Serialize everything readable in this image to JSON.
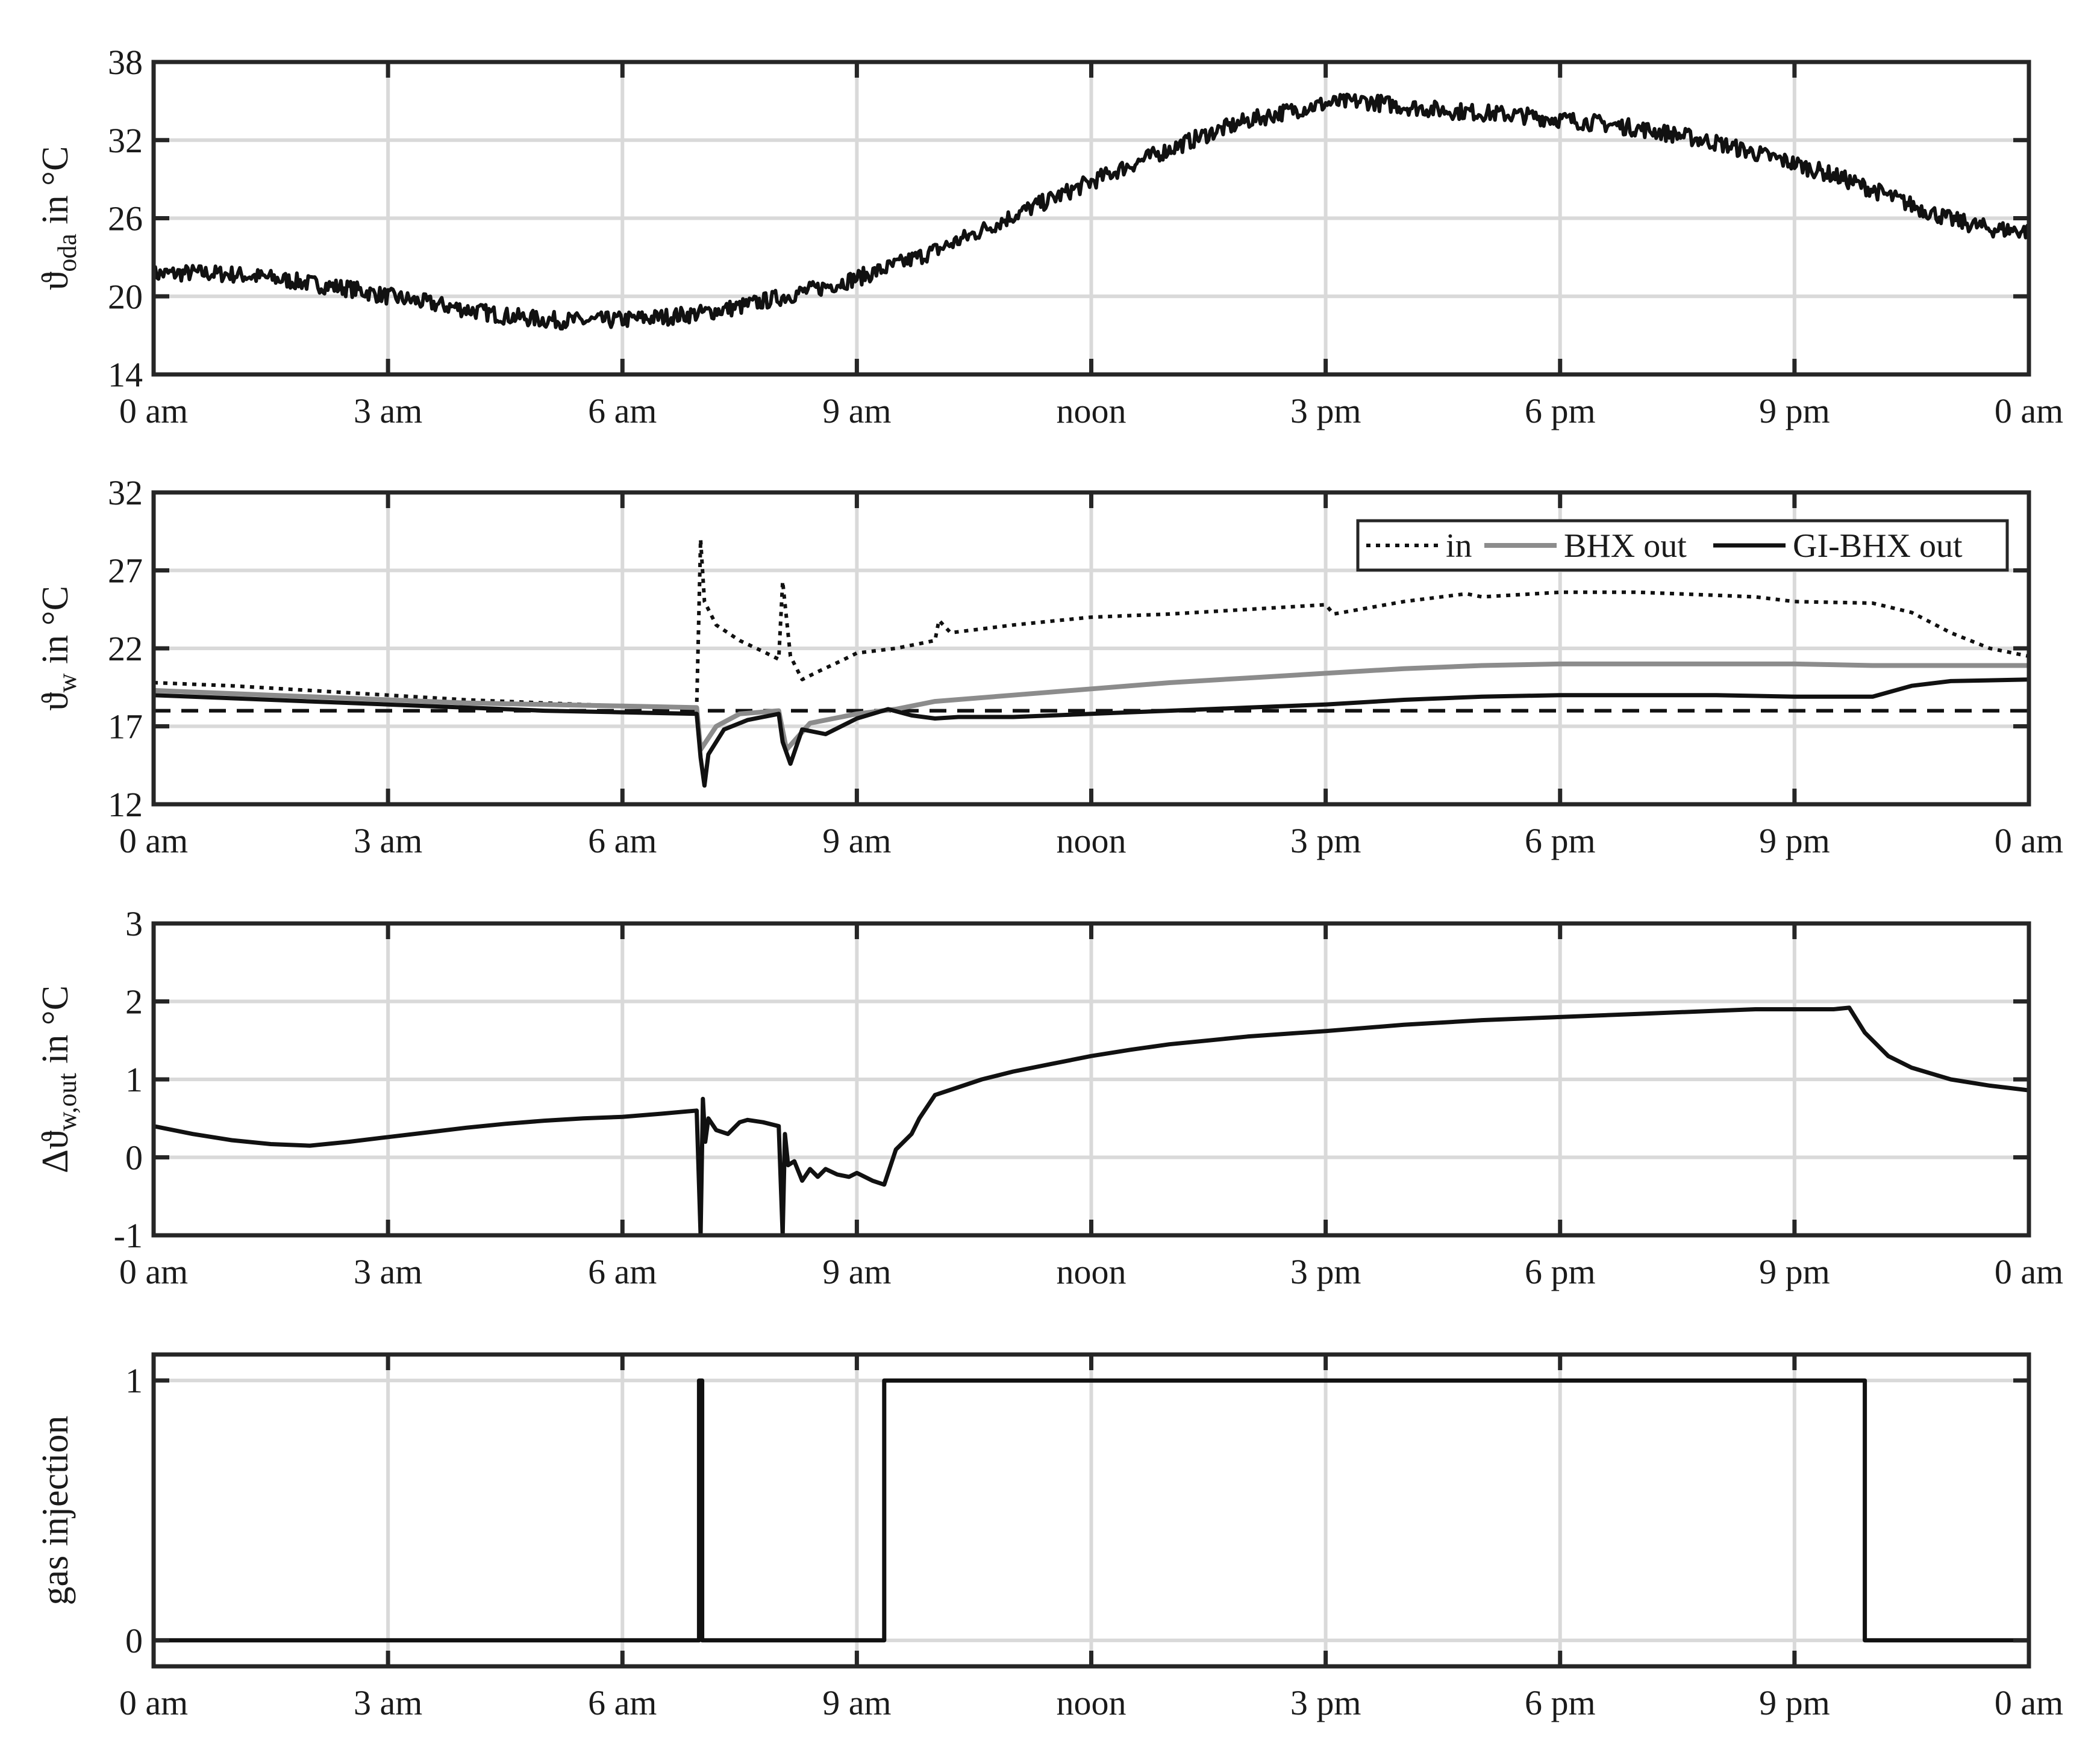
{
  "colors": {
    "frame": "#262626",
    "grid": "#d9d9d9",
    "black_line": "#111111",
    "gray_line": "#8c8c8c",
    "background": "#ffffff"
  },
  "x_tick_labels": [
    "0 am",
    "3 am",
    "6 am",
    "9 am",
    "noon",
    "3 pm",
    "6 pm",
    "9 pm",
    "0 am"
  ],
  "chart_data": [
    {
      "type": "line",
      "ylabel": "ϑoda in °C",
      "ylabel_main": "ϑ",
      "ylabel_sub": "oda",
      "ylabel_unit": " in °C",
      "xlim": [
        0,
        24
      ],
      "x_ticks": [
        0,
        3,
        6,
        9,
        12,
        15,
        18,
        21,
        24
      ],
      "ylim": [
        14,
        38
      ],
      "y_ticks": [
        14,
        20,
        26,
        32,
        38
      ],
      "y_tick_labels": [
        "14",
        "20",
        "26",
        "32",
        "38"
      ],
      "grid": true,
      "series": [
        {
          "style": "solid-black-noisy",
          "x": [
            0,
            0.5,
            1,
            1.5,
            2,
            2.5,
            3,
            3.5,
            4,
            4.5,
            5,
            5.5,
            6,
            6.5,
            7,
            7.5,
            8,
            8.5,
            9,
            9.5,
            10,
            10.5,
            11,
            11.5,
            12,
            12.5,
            13,
            13.5,
            14,
            14.5,
            15,
            15.5,
            16,
            16.5,
            17,
            17.5,
            18,
            18.5,
            19,
            19.5,
            20,
            20.5,
            21,
            21.5,
            22,
            22.5,
            23,
            23.5,
            24
          ],
          "y": [
            21.7,
            21.8,
            21.7,
            21.4,
            21.0,
            20.6,
            20.0,
            19.5,
            19.0,
            18.5,
            18.2,
            18.1,
            18.2,
            18.4,
            18.7,
            19.2,
            19.9,
            20.6,
            21.4,
            22.4,
            23.5,
            24.8,
            26.2,
            27.5,
            28.8,
            30.1,
            31.3,
            32.5,
            33.5,
            34.2,
            34.8,
            35.0,
            34.6,
            34.3,
            34.1,
            33.9,
            33.6,
            33.3,
            32.9,
            32.4,
            31.8,
            31.0,
            30.2,
            29.3,
            28.2,
            27.0,
            25.9,
            25.2,
            25.0
          ]
        }
      ]
    },
    {
      "type": "line",
      "ylabel": "ϑw in °C",
      "ylabel_main": "ϑ",
      "ylabel_sub": "w",
      "ylabel_unit": " in °C",
      "xlim": [
        0,
        24
      ],
      "x_ticks": [
        0,
        3,
        6,
        9,
        12,
        15,
        18,
        21,
        24
      ],
      "ylim": [
        12,
        32
      ],
      "y_ticks": [
        12,
        17,
        22,
        27,
        32
      ],
      "y_tick_labels": [
        "12",
        "17",
        "22",
        "27",
        "32"
      ],
      "grid": true,
      "legend_position": "top-right",
      "reference_line": {
        "y": 18,
        "style": "dashed-black"
      },
      "series": [
        {
          "name": "in",
          "style": "dotted-black",
          "x": [
            0,
            1,
            2,
            3,
            4,
            5,
            6,
            6.95,
            7.0,
            7.05,
            7.2,
            7.5,
            7.8,
            8.0,
            8.05,
            8.15,
            8.3,
            8.5,
            8.8,
            9.0,
            9.5,
            10.0,
            10.05,
            10.2,
            11,
            12,
            13,
            14,
            15,
            15.1,
            16,
            16.8,
            17,
            18,
            19,
            20,
            20.5,
            21,
            22,
            22.5,
            23,
            23.5,
            24
          ],
          "y": [
            19.8,
            19.6,
            19.3,
            19.0,
            18.7,
            18.5,
            18.3,
            18.2,
            29.0,
            25.0,
            23.5,
            22.5,
            21.8,
            21.3,
            26.3,
            21.5,
            20.0,
            20.5,
            21.2,
            21.7,
            22.0,
            22.5,
            23.8,
            23.0,
            23.5,
            24.0,
            24.2,
            24.5,
            24.8,
            24.2,
            25.0,
            25.5,
            25.3,
            25.6,
            25.6,
            25.4,
            25.3,
            25.0,
            24.9,
            24.3,
            23.0,
            22.0,
            21.5
          ]
        },
        {
          "name": "BHX out",
          "style": "solid-gray",
          "x": [
            0,
            1,
            2,
            3,
            4,
            5,
            6,
            6.95,
            7.0,
            7.2,
            7.5,
            8.0,
            8.1,
            8.4,
            9.0,
            9.5,
            10.0,
            11,
            12,
            13,
            14,
            15,
            16,
            17,
            18,
            19,
            20,
            21,
            22,
            23,
            24
          ],
          "y": [
            19.3,
            19.1,
            18.9,
            18.7,
            18.5,
            18.4,
            18.3,
            18.2,
            15.5,
            17.0,
            17.8,
            18.0,
            15.5,
            17.2,
            17.8,
            18.1,
            18.6,
            19.0,
            19.4,
            19.8,
            20.1,
            20.4,
            20.7,
            20.9,
            21.0,
            21.0,
            21.0,
            21.0,
            20.9,
            20.9,
            20.9
          ]
        },
        {
          "name": "GI-BHX out",
          "style": "solid-black",
          "x": [
            0,
            1,
            2,
            3,
            4,
            5,
            6,
            6.95,
            7.0,
            7.05,
            7.1,
            7.3,
            7.6,
            8.0,
            8.05,
            8.15,
            8.3,
            8.6,
            9.0,
            9.4,
            9.7,
            10.0,
            10.3,
            11,
            12,
            13,
            14,
            15,
            16,
            17,
            18,
            19,
            20,
            21,
            22,
            22.5,
            23,
            24
          ],
          "y": [
            19.0,
            18.8,
            18.6,
            18.4,
            18.2,
            18.0,
            17.9,
            17.8,
            15.0,
            13.2,
            15.2,
            16.8,
            17.4,
            17.8,
            16.0,
            14.6,
            16.8,
            16.5,
            17.5,
            18.1,
            17.7,
            17.5,
            17.6,
            17.6,
            17.8,
            18.0,
            18.2,
            18.4,
            18.7,
            18.9,
            19.0,
            19.0,
            19.0,
            18.9,
            18.9,
            19.6,
            19.9,
            20.0
          ]
        }
      ]
    },
    {
      "type": "line",
      "ylabel": "Δϑw,out in °C",
      "ylabel_main": "Δϑ",
      "ylabel_sub": "w,out",
      "ylabel_unit": " in °C",
      "xlim": [
        0,
        24
      ],
      "x_ticks": [
        0,
        3,
        6,
        9,
        12,
        15,
        18,
        21,
        24
      ],
      "ylim": [
        -1,
        3
      ],
      "y_ticks": [
        -1,
        0,
        1,
        2,
        3
      ],
      "y_tick_labels": [
        "-1",
        "0",
        "1",
        "2",
        "3"
      ],
      "grid": true,
      "series": [
        {
          "style": "solid-black",
          "x": [
            0,
            0.5,
            1,
            1.5,
            2,
            2.5,
            3,
            3.5,
            4,
            4.5,
            5,
            5.5,
            6,
            6.5,
            6.95,
            7.0,
            7.03,
            7.06,
            7.1,
            7.2,
            7.35,
            7.5,
            7.6,
            7.8,
            8.0,
            8.05,
            8.08,
            8.12,
            8.2,
            8.3,
            8.4,
            8.5,
            8.6,
            8.75,
            8.9,
            9.0,
            9.2,
            9.35,
            9.5,
            9.7,
            9.8,
            10.0,
            10.3,
            10.6,
            11,
            11.5,
            12,
            12.5,
            13,
            13.5,
            14,
            15,
            16,
            17,
            18,
            19,
            20,
            20.5,
            21,
            21.5,
            21.7,
            21.9,
            22.2,
            22.5,
            23,
            23.5,
            24
          ],
          "y": [
            0.4,
            0.3,
            0.22,
            0.17,
            0.15,
            0.2,
            0.26,
            0.32,
            0.38,
            0.43,
            0.47,
            0.5,
            0.52,
            0.56,
            0.6,
            -1.0,
            0.75,
            0.2,
            0.5,
            0.35,
            0.3,
            0.45,
            0.48,
            0.45,
            0.4,
            -1.0,
            0.3,
            -0.1,
            -0.05,
            -0.3,
            -0.15,
            -0.25,
            -0.15,
            -0.22,
            -0.25,
            -0.2,
            -0.3,
            -0.35,
            0.1,
            0.3,
            0.5,
            0.8,
            0.9,
            1.0,
            1.1,
            1.2,
            1.3,
            1.38,
            1.45,
            1.5,
            1.55,
            1.62,
            1.7,
            1.76,
            1.8,
            1.84,
            1.88,
            1.9,
            1.9,
            1.9,
            1.92,
            1.6,
            1.3,
            1.15,
            1.0,
            0.92,
            0.86
          ]
        }
      ]
    },
    {
      "type": "line",
      "ylabel": "gas injection",
      "ylabel_main": "gas injection",
      "ylabel_sub": "",
      "ylabel_unit": "",
      "xlim": [
        0,
        24
      ],
      "x_ticks": [
        0,
        3,
        6,
        9,
        12,
        15,
        18,
        21,
        24
      ],
      "ylim": [
        -0.1,
        1.1
      ],
      "y_ticks": [
        0,
        1
      ],
      "y_tick_labels": [
        "0",
        "1"
      ],
      "grid": true,
      "series": [
        {
          "style": "solid-black-step",
          "x": [
            0,
            6.98,
            6.98,
            7.02,
            7.02,
            9.35,
            9.35,
            21.9,
            21.9,
            24
          ],
          "y": [
            0,
            0,
            1,
            1,
            0,
            0,
            1,
            1,
            0,
            0
          ]
        }
      ]
    }
  ]
}
